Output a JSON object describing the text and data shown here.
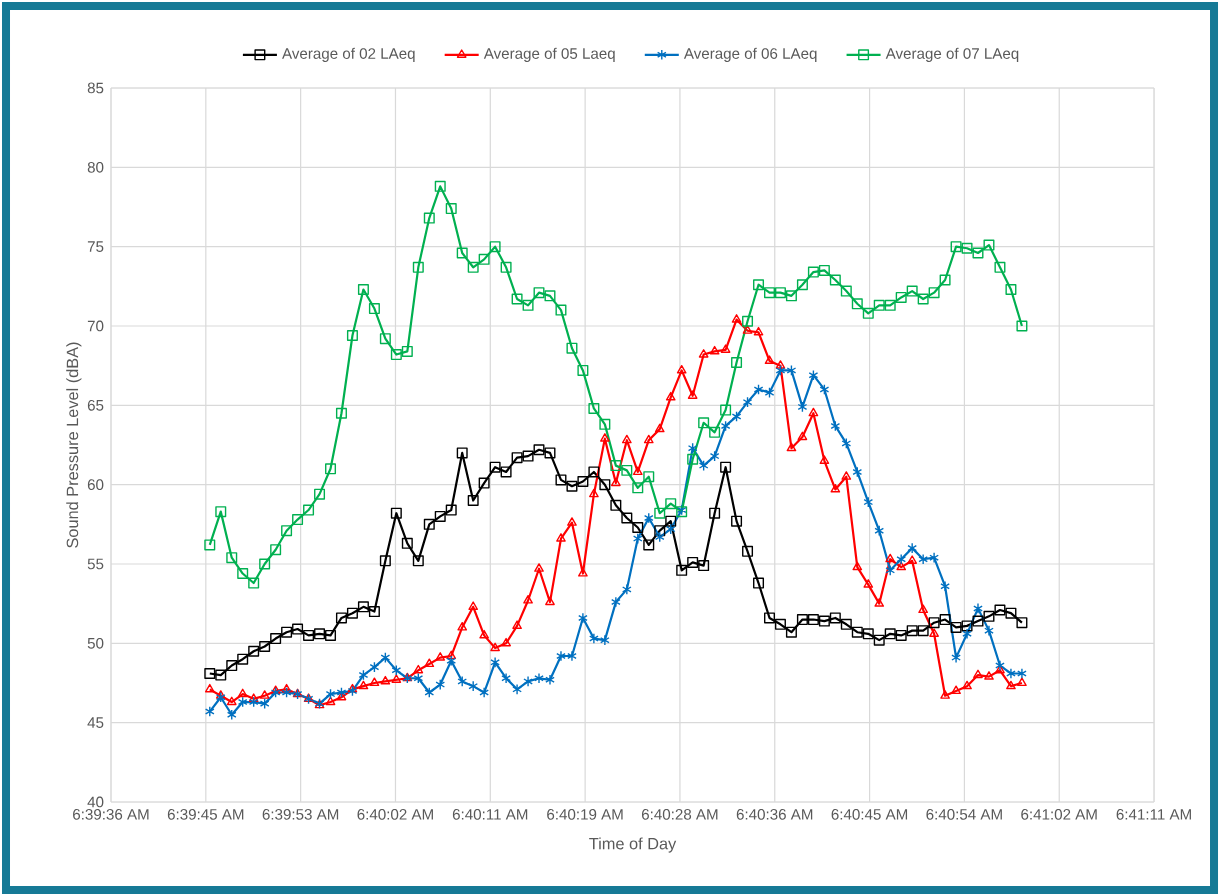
{
  "chart_data": {
    "type": "line",
    "xlabel": "Time of Day",
    "ylabel": "Sound Pressure Level (dBA)",
    "x": [
      6.6625,
      6.662778,
      6.663056,
      6.663333,
      6.663611,
      6.663889,
      6.664167,
      6.664444,
      6.664722,
      6.665,
      6.665278,
      6.665556,
      6.665833,
      6.666111,
      6.666389,
      6.666667,
      6.666944,
      6.667222,
      6.6675,
      6.667778,
      6.668056,
      6.668333,
      6.668611,
      6.668889,
      6.669167,
      6.669444,
      6.669722,
      6.67,
      6.670278,
      6.670556,
      6.670833,
      6.671111,
      6.671389,
      6.671667,
      6.671944,
      6.672222,
      6.6725,
      6.672778,
      6.673056,
      6.673333,
      6.673611,
      6.673889,
      6.674167,
      6.674444,
      6.674722,
      6.675,
      6.675278,
      6.675556,
      6.675833,
      6.676111,
      6.676389,
      6.676667,
      6.676944,
      6.677222,
      6.6775,
      6.677778,
      6.678056,
      6.678333,
      6.678611,
      6.678889,
      6.679167,
      6.679444,
      6.679722,
      6.68,
      6.680278,
      6.680556,
      6.680833,
      6.681111,
      6.681389,
      6.681667,
      6.681944,
      6.682222,
      6.6825,
      6.682778,
      6.683056
    ],
    "series": [
      {
        "name": "Average of 02 LAeq",
        "color": "#000000",
        "marker": "square",
        "values": [
          48.1,
          48.0,
          48.6,
          49.0,
          49.5,
          49.8,
          50.3,
          50.7,
          50.9,
          50.5,
          50.6,
          50.5,
          51.6,
          51.9,
          52.3,
          52.0,
          55.2,
          58.2,
          56.3,
          55.2,
          57.5,
          58.0,
          58.4,
          62.0,
          59.0,
          60.1,
          61.1,
          60.8,
          61.7,
          61.8,
          62.2,
          62.0,
          60.3,
          59.9,
          60.2,
          60.8,
          60.0,
          58.7,
          57.9,
          57.3,
          56.2,
          57.1,
          57.7,
          54.6,
          55.1,
          54.9,
          58.2,
          61.1,
          57.7,
          55.8,
          53.8,
          51.6,
          51.2,
          50.7,
          51.5,
          51.5,
          51.4,
          51.6,
          51.2,
          50.7,
          50.6,
          50.2,
          50.6,
          50.5,
          50.8,
          50.8,
          51.3,
          51.5,
          51.0,
          51.1,
          51.4,
          51.7,
          52.1,
          51.9,
          51.3
        ]
      },
      {
        "name": "Average of 05 Laeq",
        "color": "#ff0000",
        "marker": "triangle",
        "values": [
          47.1,
          46.7,
          46.3,
          46.8,
          46.5,
          46.7,
          47.0,
          47.1,
          46.8,
          46.5,
          46.1,
          46.3,
          46.6,
          47.1,
          47.3,
          47.5,
          47.6,
          47.7,
          47.8,
          48.3,
          48.7,
          49.1,
          49.2,
          51.0,
          52.3,
          50.5,
          49.7,
          50.0,
          51.1,
          52.7,
          54.7,
          52.6,
          56.6,
          57.6,
          54.4,
          59.4,
          62.9,
          60.1,
          62.8,
          60.8,
          62.8,
          63.5,
          65.5,
          67.2,
          65.6,
          68.2,
          68.4,
          68.5,
          70.4,
          69.7,
          69.6,
          67.8,
          67.5,
          62.3,
          63.0,
          64.5,
          61.5,
          59.7,
          60.5,
          54.8,
          53.7,
          52.5,
          55.3,
          54.8,
          55.2,
          52.1,
          50.6,
          46.7,
          47.0,
          47.3,
          48.0,
          47.9,
          48.3,
          47.3,
          47.5
        ]
      },
      {
        "name": "Average of 06 LAeq",
        "color": "#0070c0",
        "marker": "cross",
        "values": [
          45.7,
          46.6,
          45.5,
          46.3,
          46.3,
          46.2,
          46.9,
          46.9,
          46.8,
          46.5,
          46.2,
          46.8,
          46.9,
          47.0,
          48.0,
          48.5,
          49.1,
          48.3,
          47.8,
          47.8,
          46.9,
          47.4,
          48.9,
          47.6,
          47.3,
          46.9,
          48.8,
          47.8,
          47.1,
          47.6,
          47.8,
          47.7,
          49.2,
          49.2,
          51.6,
          50.3,
          50.2,
          52.6,
          53.4,
          56.6,
          57.9,
          56.7,
          57.2,
          58.4,
          62.3,
          61.2,
          61.8,
          63.7,
          64.3,
          65.2,
          66.0,
          65.8,
          67.2,
          67.2,
          64.9,
          66.9,
          66.0,
          63.7,
          62.6,
          60.8,
          58.9,
          57.1,
          54.6,
          55.3,
          56.0,
          55.3,
          55.4,
          53.6,
          49.1,
          50.6,
          52.2,
          50.8,
          48.6,
          48.1,
          48.1
        ]
      },
      {
        "name": "Average of 07 LAeq",
        "color": "#00b050",
        "marker": "square",
        "values": [
          56.2,
          58.3,
          55.4,
          54.4,
          53.8,
          55.0,
          55.9,
          57.1,
          57.8,
          58.4,
          59.4,
          61.0,
          64.5,
          69.4,
          72.3,
          71.1,
          69.2,
          68.2,
          68.4,
          73.7,
          76.8,
          78.8,
          77.4,
          74.6,
          73.7,
          74.2,
          75.0,
          73.7,
          71.7,
          71.3,
          72.1,
          71.9,
          71.0,
          68.6,
          67.2,
          64.8,
          63.8,
          61.2,
          60.9,
          59.8,
          60.5,
          58.2,
          58.8,
          58.3,
          61.6,
          63.9,
          63.3,
          64.7,
          67.7,
          70.3,
          72.6,
          72.1,
          72.1,
          71.9,
          72.6,
          73.4,
          73.5,
          72.9,
          72.2,
          71.4,
          70.8,
          71.3,
          71.3,
          71.8,
          72.2,
          71.7,
          72.1,
          72.9,
          75.0,
          74.9,
          74.6,
          75.1,
          73.7,
          72.3,
          70.0
        ]
      }
    ],
    "xlim": [
      6.66,
      6.6864
    ],
    "xticks": [
      {
        "value": 6.66,
        "label": "6:39:36 AM"
      },
      {
        "value": 6.6624,
        "label": "6:39:45 AM"
      },
      {
        "value": 6.6648,
        "label": "6:39:53 AM"
      },
      {
        "value": 6.6672,
        "label": "6:40:02 AM"
      },
      {
        "value": 6.6696,
        "label": "6:40:11 AM"
      },
      {
        "value": 6.672,
        "label": "6:40:19 AM"
      },
      {
        "value": 6.6744,
        "label": "6:40:28 AM"
      },
      {
        "value": 6.6768,
        "label": "6:40:36 AM"
      },
      {
        "value": 6.6792,
        "label": "6:40:45 AM"
      },
      {
        "value": 6.6816,
        "label": "6:40:54 AM"
      },
      {
        "value": 6.684,
        "label": "6:41:02 AM"
      },
      {
        "value": 6.6864,
        "label": "6:41:11 AM"
      }
    ],
    "ylim": [
      40,
      85
    ],
    "yticks": [
      40,
      45,
      50,
      55,
      60,
      65,
      70,
      75,
      80,
      85
    ],
    "grid": true,
    "legend": "top",
    "line_style": "solid"
  }
}
